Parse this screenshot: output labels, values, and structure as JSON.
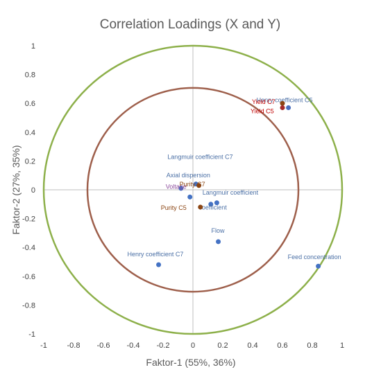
{
  "chart_data": {
    "type": "scatter",
    "title": "Correlation Loadings (X and Y)",
    "xlabel": "Faktor-1 (55%, 36%)",
    "ylabel": "Faktor-2 (27%, 35%)",
    "xlim": [
      -1,
      1
    ],
    "ylim": [
      -1,
      1
    ],
    "xticks": [
      "-1",
      "-0.8",
      "-0.6",
      "-0.4",
      "-0.2",
      "0",
      "0.2",
      "0.4",
      "0.6",
      "0.8",
      "1"
    ],
    "yticks": [
      "1",
      "0.8",
      "0.6",
      "0.4",
      "0.2",
      "0",
      "-0.2",
      "-0.4",
      "-0.6",
      "-0.8",
      "-1"
    ],
    "grid": false,
    "circles": [
      {
        "radius": 1.0,
        "color": "#8db04a"
      },
      {
        "radius": 0.7071,
        "color": "#9e5f4b"
      }
    ],
    "points": [
      {
        "label": "Henry coefficient C5",
        "x": 0.64,
        "y": 0.57,
        "color": "#4b6fbf",
        "label_color": "#4a6fa5"
      },
      {
        "label": "Yield C7",
        "x": 0.6,
        "y": 0.6,
        "color": "#8b4513",
        "label_color": "#c00000"
      },
      {
        "label": "Yield C5",
        "x": 0.6,
        "y": 0.57,
        "color": "#a52a2a",
        "label_color": "#c00000"
      },
      {
        "label": "Langmuir coefficient C7",
        "x": 0.02,
        "y": 0.04,
        "color": "#4472c4",
        "label_color": "#4a6fa5"
      },
      {
        "label": "Axial dispersion",
        "x": -0.08,
        "y": 0.01,
        "color": "#4472c4",
        "label_color": "#4a6fa5"
      },
      {
        "label": "Voltage",
        "x": -0.02,
        "y": -0.05,
        "color": "#4472c4",
        "label_color": "#8b4a9c"
      },
      {
        "label": "Purity C7",
        "x": 0.04,
        "y": 0.03,
        "color": "#8b4513",
        "label_color": "#8b4513"
      },
      {
        "label": "Langmuir coefficient",
        "x": 0.12,
        "y": -0.1,
        "color": "#4472c4",
        "label_color": "#4a6fa5"
      },
      {
        "label": "coefficient",
        "x": 0.16,
        "y": -0.09,
        "color": "#4472c4",
        "label_color": "#4a6fa5"
      },
      {
        "label": "Purity C5",
        "x": 0.05,
        "y": -0.12,
        "color": "#8b4513",
        "label_color": "#8b4513"
      },
      {
        "label": "Flow",
        "x": 0.17,
        "y": -0.36,
        "color": "#4472c4",
        "label_color": "#4a6fa5"
      },
      {
        "label": "Henry coefficient C7",
        "x": -0.23,
        "y": -0.52,
        "color": "#4472c4",
        "label_color": "#4a6fa5"
      },
      {
        "label": "Feed concentration",
        "x": 0.84,
        "y": -0.53,
        "color": "#4472c4",
        "label_color": "#4a6fa5"
      }
    ]
  }
}
